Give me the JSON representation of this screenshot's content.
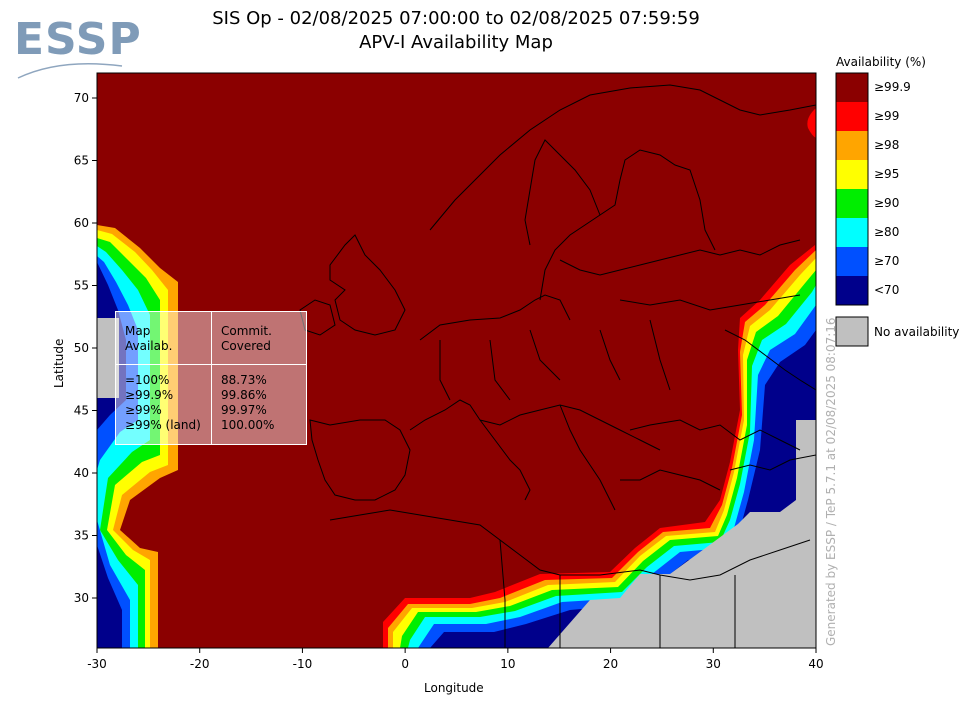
{
  "logo": {
    "text": "ESSP"
  },
  "title": {
    "line1": "SIS Op - 02/08/2025 07:00:00 to 02/08/2025 07:59:59",
    "line2": "APV-I Availability Map"
  },
  "axes": {
    "xlabel": "Longitude",
    "ylabel": "Latitude",
    "xlim": [
      -30,
      40
    ],
    "ylim": [
      26,
      72
    ],
    "xticks": [
      -30,
      -20,
      -10,
      0,
      10,
      20,
      30,
      40
    ],
    "yticks": [
      30,
      35,
      40,
      45,
      50,
      55,
      60,
      65,
      70
    ]
  },
  "legend": {
    "title": "Availability (%)",
    "items": [
      {
        "label": "≥99.9",
        "color": "#8b0000"
      },
      {
        "label": "≥99",
        "color": "#ff0000"
      },
      {
        "label": "≥98",
        "color": "#ffa500"
      },
      {
        "label": "≥95",
        "color": "#ffff00"
      },
      {
        "label": "≥90",
        "color": "#00ee00"
      },
      {
        "label": "≥80",
        "color": "#00ffff"
      },
      {
        "label": "≥70",
        "color": "#0050ff"
      },
      {
        "label": "<70",
        "color": "#00008b"
      }
    ],
    "no_availability": {
      "label": "No availability",
      "color": "#c0c0c0"
    }
  },
  "stats_box": {
    "header_left_1": "Map",
    "header_left_2": "Availab.",
    "header_right_1": "Commit.",
    "header_right_2": "Covered",
    "rows": [
      {
        "label": "=100%",
        "value": "88.73%"
      },
      {
        "label": "≥99.9%",
        "value": "99.86%"
      },
      {
        "label": "≥99%",
        "value": "99.97%"
      },
      {
        "label": "≥99% (land)",
        "value": "100.00%"
      }
    ]
  },
  "credit": "Generated by ESSP / TeP 5.7.1 at 02/08/2025 08:07:16",
  "colors": {
    "map_fill": "#8b0000",
    "no_avail": "#c0c0c0",
    "coastline": "#000000"
  }
}
